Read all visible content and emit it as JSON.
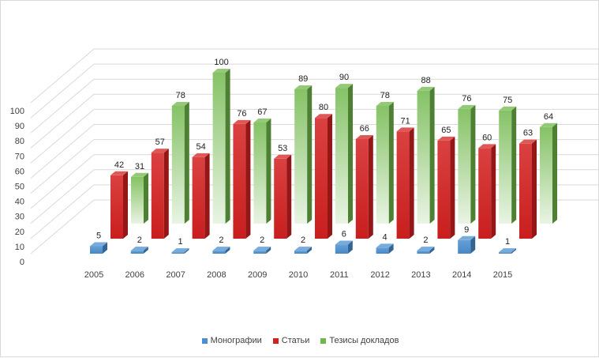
{
  "chart_data": {
    "type": "bar",
    "subtype": "3d-clustered-column",
    "title": "",
    "xlabel": "",
    "ylabel": "",
    "ylim": [
      0,
      100
    ],
    "yticks": [
      "0",
      "10",
      "20",
      "30",
      "40",
      "50",
      "60",
      "70",
      "80",
      "90",
      "100"
    ],
    "categories": [
      "2005",
      "2006",
      "2007",
      "2008",
      "2009",
      "2010",
      "2011",
      "2012",
      "2013",
      "2014",
      "2015"
    ],
    "series": [
      {
        "name": "Монографии",
        "values": [
          5,
          2,
          1,
          2,
          2,
          2,
          6,
          4,
          2,
          9,
          1
        ],
        "color": "#4a8fcf"
      },
      {
        "name": "Статьи",
        "values": [
          42,
          57,
          54,
          76,
          53,
          80,
          66,
          71,
          65,
          60,
          63
        ],
        "color": "#d42020"
      },
      {
        "name": "Тезисы докладов",
        "values": [
          31,
          78,
          100,
          67,
          89,
          90,
          78,
          88,
          76,
          75,
          64
        ],
        "color": "#6fb74a"
      }
    ],
    "grid": true,
    "legend_position": "bottom"
  }
}
